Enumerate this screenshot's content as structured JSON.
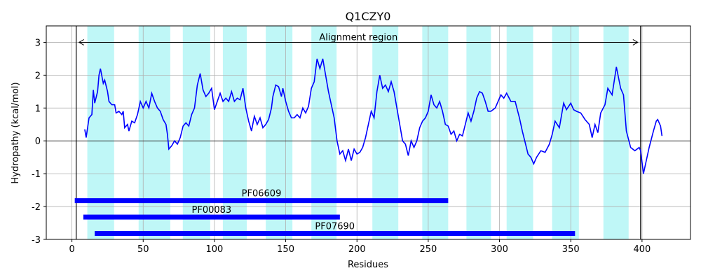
{
  "chart_data": {
    "type": "line",
    "title": "Q1CZY0",
    "xlabel": "Residues",
    "ylabel": "Hydropathy (kcal/mol)",
    "xlim": [
      -18,
      434
    ],
    "ylim": [
      -3,
      3.5
    ],
    "xticks": [
      0,
      50,
      100,
      150,
      200,
      250,
      300,
      350,
      400
    ],
    "yticks": [
      -3,
      -2,
      -1,
      0,
      1,
      2,
      3
    ],
    "grid": true,
    "x": [
      9,
      10,
      12,
      14,
      15,
      16,
      18,
      19,
      20,
      22,
      23,
      25,
      26,
      28,
      30,
      31,
      33,
      35,
      36,
      37,
      39,
      40,
      42,
      44,
      46,
      48,
      50,
      52,
      54,
      56,
      58,
      60,
      62,
      64,
      66,
      67,
      68,
      70,
      72,
      74,
      76,
      78,
      80,
      82,
      84,
      86,
      88,
      90,
      92,
      94,
      96,
      98,
      100,
      102,
      104,
      106,
      108,
      110,
      112,
      114,
      116,
      118,
      120,
      122,
      124,
      126,
      128,
      130,
      132,
      134,
      136,
      138,
      140,
      141,
      143,
      145,
      147,
      148,
      150,
      152,
      154,
      156,
      158,
      160,
      162,
      164,
      166,
      168,
      170,
      172,
      174,
      176,
      178,
      180,
      182,
      184,
      186,
      188,
      190,
      192,
      194,
      196,
      198,
      200,
      202,
      204,
      206,
      208,
      210,
      212,
      214,
      216,
      218,
      220,
      222,
      224,
      226,
      228,
      230,
      232,
      234,
      236,
      238,
      240,
      242,
      244,
      246,
      248,
      250,
      252,
      254,
      256,
      258,
      260,
      262,
      264,
      266,
      268,
      270,
      272,
      274,
      276,
      278,
      280,
      282,
      284,
      286,
      288,
      290,
      292,
      294,
      297,
      301,
      303,
      305,
      308,
      311,
      314,
      316,
      318,
      320,
      322,
      324,
      326,
      329,
      332,
      335,
      337,
      339,
      342,
      345,
      347,
      350,
      352,
      354,
      357,
      360,
      363,
      365,
      367,
      369,
      371,
      374,
      376,
      379,
      382,
      385,
      387,
      389,
      392,
      395,
      398,
      399,
      401,
      403,
      405,
      408,
      410,
      411,
      413,
      414
    ],
    "series": [
      {
        "name": "Hydropathy",
        "color": "#0000ff",
        "values": [
          0.35,
          0.1,
          0.7,
          0.8,
          1.55,
          1.15,
          1.5,
          2.0,
          2.2,
          1.75,
          1.85,
          1.5,
          1.2,
          1.1,
          1.1,
          0.85,
          0.9,
          0.8,
          0.9,
          0.4,
          0.5,
          0.3,
          0.6,
          0.55,
          0.8,
          1.2,
          1.0,
          1.2,
          1.0,
          1.45,
          1.2,
          1.0,
          0.9,
          0.65,
          0.5,
          0.2,
          -0.25,
          -0.15,
          0,
          -0.1,
          0.1,
          0.45,
          0.55,
          0.45,
          0.8,
          1.0,
          1.7,
          2.05,
          1.55,
          1.35,
          1.45,
          1.6,
          0.95,
          1.2,
          1.45,
          1.2,
          1.3,
          1.2,
          1.5,
          1.2,
          1.3,
          1.25,
          1.6,
          1.0,
          0.6,
          0.3,
          0.75,
          0.5,
          0.7,
          0.4,
          0.5,
          0.65,
          1.0,
          1.35,
          1.7,
          1.65,
          1.35,
          1.6,
          1.2,
          0.9,
          0.7,
          0.7,
          0.8,
          0.7,
          1.0,
          0.85,
          1.05,
          1.6,
          1.8,
          2.5,
          2.2,
          2.5,
          2.0,
          1.5,
          1.1,
          0.7,
          0,
          -0.4,
          -0.3,
          -0.6,
          -0.25,
          -0.6,
          -0.25,
          -0.4,
          -0.35,
          -0.2,
          0.1,
          0.5,
          0.9,
          0.7,
          1.5,
          2.0,
          1.6,
          1.7,
          1.5,
          1.8,
          1.5,
          1.0,
          0.5,
          0,
          -0.1,
          -0.45,
          0,
          -0.2,
          0,
          0.4,
          0.6,
          0.7,
          0.9,
          1.4,
          1.1,
          1.0,
          1.2,
          0.9,
          0.5,
          0.45,
          0.2,
          0.3,
          0,
          0.2,
          0.15,
          0.5,
          0.85,
          0.6,
          0.9,
          1.3,
          1.5,
          1.45,
          1.2,
          0.9,
          0.9,
          1.0,
          1.4,
          1.3,
          1.45,
          1.2,
          1.2,
          0.7,
          0.3,
          -0.05,
          -0.4,
          -0.5,
          -0.7,
          -0.5,
          -0.3,
          -0.35,
          -0.1,
          0.2,
          0.6,
          0.4,
          1.15,
          0.95,
          1.15,
          0.95,
          0.9,
          0.85,
          0.65,
          0.5,
          0.1,
          0.5,
          0.25,
          0.85,
          1.1,
          1.6,
          1.4,
          2.25,
          1.6,
          1.4,
          0.3,
          -0.2,
          -0.3,
          -0.2,
          -0.3,
          -1.0,
          -0.6,
          -0.2,
          0.3,
          0.6,
          0.65,
          0.45,
          0.15
        ]
      }
    ],
    "regions_color": "#bff7f7",
    "regions": [
      [
        10.8,
        29.6
      ],
      [
        46.8,
        69
      ],
      [
        77.8,
        97
      ],
      [
        105.9,
        122.7
      ],
      [
        136,
        154.7
      ],
      [
        168,
        185.7
      ],
      [
        210.8,
        229
      ],
      [
        245.8,
        264
      ],
      [
        276.8,
        294
      ],
      [
        305,
        323.6
      ],
      [
        336.9,
        355.7
      ],
      [
        372.9,
        390.6
      ]
    ],
    "alignment": {
      "label": "Alignment region",
      "start": 3,
      "end": 399,
      "y": 3
    },
    "domains_color": "#0000ff",
    "domains": [
      {
        "name": "PF06609",
        "start": 2,
        "end": 264,
        "y": -1.82
      },
      {
        "name": "PF00083",
        "start": 8,
        "end": 188,
        "y": -2.32
      },
      {
        "name": "PF07690",
        "start": 16,
        "end": 353,
        "y": -2.82
      }
    ]
  }
}
